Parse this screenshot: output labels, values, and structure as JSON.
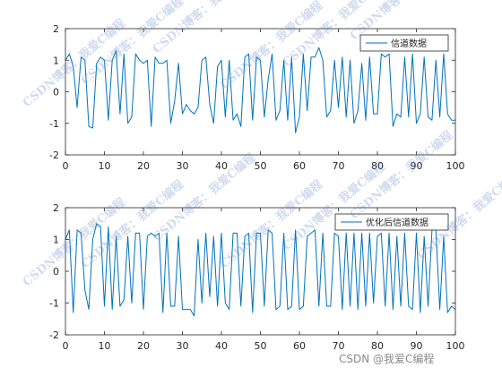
{
  "chart_data": [
    {
      "type": "line",
      "legend": "信道数据",
      "legend_position": "top-right",
      "series": [
        {
          "name": "信道数据",
          "color": "#0072BD",
          "x": [
            0,
            1,
            2,
            3,
            4,
            5,
            6,
            7,
            8,
            9,
            10,
            11,
            12,
            13,
            14,
            15,
            16,
            17,
            18,
            19,
            20,
            21,
            22,
            23,
            24,
            25,
            26,
            27,
            28,
            29,
            30,
            31,
            32,
            33,
            34,
            35,
            36,
            37,
            38,
            39,
            40,
            41,
            42,
            43,
            44,
            45,
            46,
            47,
            48,
            49,
            50,
            51,
            52,
            53,
            54,
            55,
            56,
            57,
            58,
            59,
            60,
            61,
            62,
            63,
            64,
            65,
            66,
            67,
            68,
            69,
            70,
            71,
            72,
            73,
            74,
            75,
            76,
            77,
            78,
            79,
            80,
            81,
            82,
            83,
            84,
            85,
            86,
            87,
            88,
            89,
            90,
            91,
            92,
            93,
            94,
            95,
            96,
            97,
            98,
            99,
            100
          ],
          "y": [
            1.0,
            1.2,
            0.8,
            -0.5,
            1.1,
            1.0,
            -1.1,
            -1.15,
            0.9,
            1.1,
            1.0,
            -0.9,
            1.0,
            1.3,
            -0.7,
            1.2,
            -1.0,
            -0.8,
            1.2,
            1.0,
            0.9,
            1.0,
            -1.1,
            1.1,
            0.9,
            0.9,
            1.0,
            -1.0,
            -0.3,
            0.9,
            -0.7,
            -0.4,
            -0.6,
            -0.7,
            -0.5,
            1.0,
            1.1,
            -0.4,
            -1.0,
            0.8,
            1.0,
            -0.8,
            1.0,
            -0.9,
            -0.7,
            -1.1,
            1.1,
            1.2,
            -0.9,
            1.1,
            1.0,
            -0.8,
            0.4,
            1.2,
            -0.9,
            -0.6,
            1.0,
            -0.9,
            1.1,
            -1.3,
            -0.8,
            1.2,
            -0.6,
            1.1,
            1.1,
            1.4,
            1.0,
            -0.8,
            -0.6,
            1.0,
            -0.5,
            1.1,
            -0.8,
            1.0,
            -1.0,
            -0.6,
            0.9,
            -0.9,
            1.1,
            -0.7,
            -0.7,
            1.2,
            1.1,
            1.2,
            -1.1,
            -0.7,
            -0.8,
            1.1,
            -0.8,
            1.2,
            -1.0,
            -0.7,
            1.1,
            -0.8,
            -0.9,
            1.0,
            -0.8,
            1.2,
            -0.7,
            -0.9,
            -0.9
          ]
        }
      ],
      "xlim": [
        0,
        100
      ],
      "ylim": [
        -2,
        2
      ],
      "xticks": [
        0,
        10,
        20,
        30,
        40,
        50,
        60,
        70,
        80,
        90,
        100
      ],
      "yticks": [
        -2,
        -1,
        0,
        1,
        2
      ]
    },
    {
      "type": "line",
      "legend": "优化后信道数据",
      "legend_position": "top-right",
      "series": [
        {
          "name": "优化后信道数据",
          "color": "#0072BD",
          "x": [
            0,
            1,
            2,
            3,
            4,
            5,
            6,
            7,
            8,
            9,
            10,
            11,
            12,
            13,
            14,
            15,
            16,
            17,
            18,
            19,
            20,
            21,
            22,
            23,
            24,
            25,
            26,
            27,
            28,
            29,
            30,
            31,
            32,
            33,
            34,
            35,
            36,
            37,
            38,
            39,
            40,
            41,
            42,
            43,
            44,
            45,
            46,
            47,
            48,
            49,
            50,
            51,
            52,
            53,
            54,
            55,
            56,
            57,
            58,
            59,
            60,
            61,
            62,
            63,
            64,
            65,
            66,
            67,
            68,
            69,
            70,
            71,
            72,
            73,
            74,
            75,
            76,
            77,
            78,
            79,
            80,
            81,
            82,
            83,
            84,
            85,
            86,
            87,
            88,
            89,
            90,
            91,
            92,
            93,
            94,
            95,
            96,
            97,
            98,
            99,
            100
          ],
          "y": [
            1.0,
            1.3,
            -1.3,
            1.3,
            1.2,
            -0.6,
            -1.2,
            1.0,
            1.5,
            1.4,
            -1.1,
            1.4,
            -1.2,
            1.1,
            -1.1,
            -0.9,
            1.1,
            -1.0,
            1.2,
            1.2,
            -1.2,
            1.1,
            1.2,
            1.1,
            1.2,
            -1.3,
            1.2,
            -1.1,
            -1.1,
            1.1,
            -1.2,
            -1.2,
            -1.2,
            -1.4,
            1.0,
            -1.0,
            1.2,
            -0.8,
            1.1,
            -1.1,
            1.2,
            -1.0,
            -1.2,
            1.2,
            1.2,
            -1.1,
            1.1,
            1.2,
            -1.3,
            1.2,
            1.2,
            -1.1,
            1.3,
            1.2,
            -1.2,
            -1.1,
            1.2,
            -1.2,
            -1.1,
            1.3,
            -1.2,
            -1.1,
            1.1,
            1.2,
            1.3,
            -1.1,
            1.2,
            -1.1,
            -1.1,
            1.2,
            1.1,
            -1.2,
            1.2,
            -1.1,
            1.2,
            -1.2,
            1.2,
            -1.1,
            1.2,
            -1.0,
            1.1,
            1.2,
            -1.1,
            1.2,
            -1.2,
            1.1,
            -1.1,
            1.2,
            -1.1,
            -1.2,
            1.2,
            -1.3,
            1.1,
            -1.1,
            1.3,
            1.3,
            -1.2,
            1.1,
            -1.3,
            -1.1,
            -1.2
          ]
        }
      ],
      "xlim": [
        0,
        100
      ],
      "ylim": [
        -2,
        2
      ],
      "xticks": [
        0,
        10,
        20,
        30,
        40,
        50,
        60,
        70,
        80,
        90,
        100
      ],
      "yticks": [
        -2,
        -1,
        0,
        1,
        2
      ]
    }
  ],
  "watermark": {
    "text": "CSDN博客：我爱C编程"
  },
  "credit": {
    "text": "CSDN @我爱C编程"
  }
}
